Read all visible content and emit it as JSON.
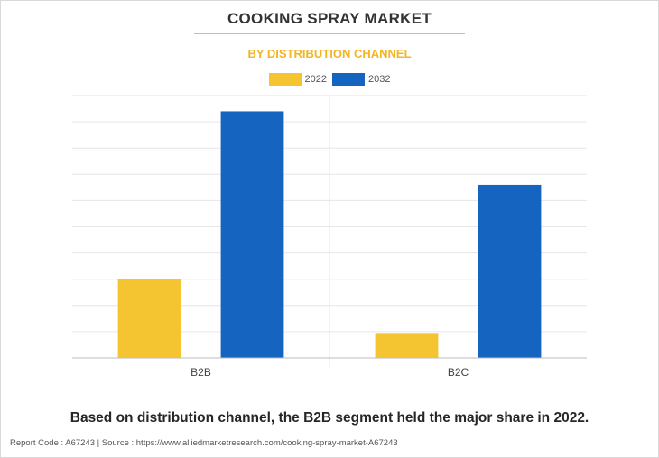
{
  "title": "COOKING SPRAY MARKET",
  "subtitle": "BY DISTRIBUTION CHANNEL",
  "caption": "Based on distribution channel, the B2B segment held the major share in 2022.",
  "footer": "Report Code : A67243  |  Source : https://www.alliedmarketresearch.com/cooking-spray-market-A67243",
  "colors": {
    "y2022": "#f5c431",
    "y2032": "#1565c0",
    "subtitle": "#f3b523"
  },
  "chart_data": {
    "type": "bar",
    "categories": [
      "B2B",
      "B2C"
    ],
    "series": [
      {
        "name": "2022",
        "values": [
          30,
          9.5
        ]
      },
      {
        "name": "2032",
        "values": [
          94,
          66
        ]
      }
    ],
    "ylim": [
      0,
      100
    ],
    "y_tick_labels_shown": false,
    "grid": true,
    "legend": "top-center"
  }
}
